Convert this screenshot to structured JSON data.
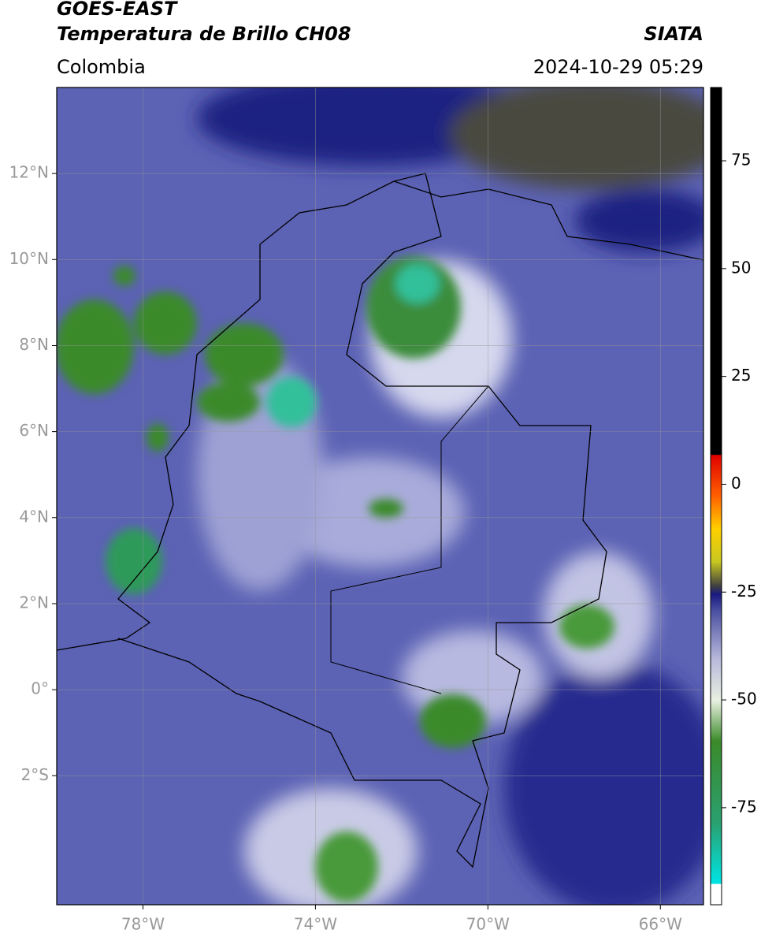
{
  "header": {
    "title": "GOES-EAST",
    "subtitle": "Temperatura de Brillo CH08",
    "source": "SIATA",
    "region": "Colombia",
    "datetime": "2024-10-29 05:29"
  },
  "map": {
    "xlim": [
      -80,
      -65
    ],
    "ylim": [
      -5,
      14
    ],
    "grid": true,
    "xticks": [
      {
        "value": -78,
        "label": "78°W"
      },
      {
        "value": -74,
        "label": "74°W"
      },
      {
        "value": -70,
        "label": "70°W"
      },
      {
        "value": -66,
        "label": "66°W"
      }
    ],
    "yticks": [
      {
        "value": 12,
        "label": "12°N"
      },
      {
        "value": 10,
        "label": "10°N"
      },
      {
        "value": 8,
        "label": "8°N"
      },
      {
        "value": 6,
        "label": "6°N"
      },
      {
        "value": 4,
        "label": "4°N"
      },
      {
        "value": 2,
        "label": "2°N"
      },
      {
        "value": 0,
        "label": "0°"
      },
      {
        "value": -2,
        "label": "2°S"
      }
    ]
  },
  "colorbar": {
    "clim": [
      -97.5,
      92
    ],
    "ticks": [
      75,
      50,
      25,
      0,
      -25,
      -50,
      -75
    ]
  }
}
